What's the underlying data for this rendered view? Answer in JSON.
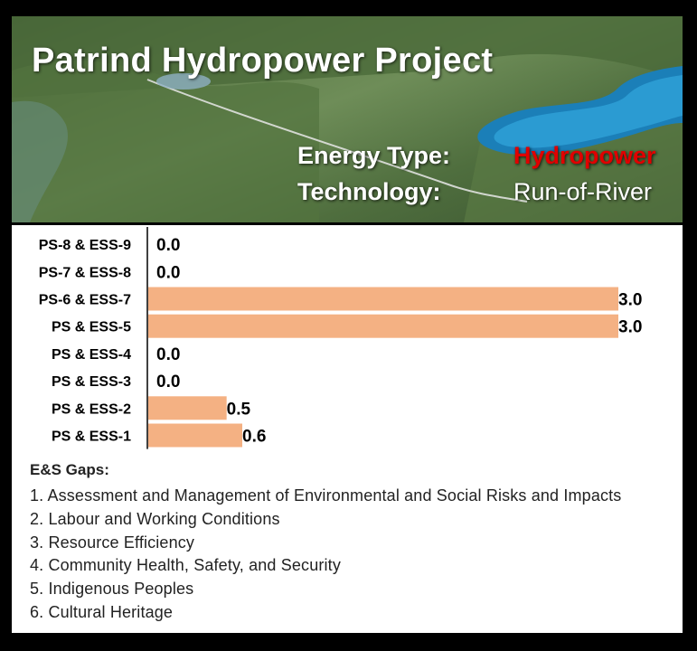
{
  "header": {
    "title": "Patrind Hydropower Project",
    "energy_type_label": "Energy Type:",
    "energy_type_value": "Hydropower",
    "technology_label": "Technology:",
    "technology_value": "Run-of-River"
  },
  "colors": {
    "bar": "#f4b183",
    "energy_value": "#e00000"
  },
  "chart_data": {
    "type": "bar",
    "orientation": "horizontal",
    "categories": [
      "PS-8 & ESS-9",
      "PS-7 & ESS-8",
      "PS-6 & ESS-7",
      "PS & ESS-5",
      "PS & ESS-4",
      "PS & ESS-3",
      "PS & ESS-2",
      "PS & ESS-1"
    ],
    "values": [
      0.0,
      0.0,
      3.0,
      3.0,
      0.0,
      0.0,
      0.5,
      0.6
    ],
    "value_labels": [
      "0.0",
      "0.0",
      "3.0",
      "3.0",
      "0.0",
      "0.0",
      "0.5",
      "0.6"
    ],
    "xlim": [
      0,
      3.0
    ],
    "grid": false,
    "title": "",
    "xlabel": "",
    "ylabel": ""
  },
  "legend": {
    "heading": "E&S Gaps:",
    "items": [
      "1. Assessment and Management of Environmental and Social Risks and Impacts",
      "2. Labour and Working Conditions",
      "3. Resource Efficiency",
      "4. Community Health, Safety, and Security",
      "5. Indigenous Peoples",
      "6. Cultural Heritage"
    ]
  }
}
